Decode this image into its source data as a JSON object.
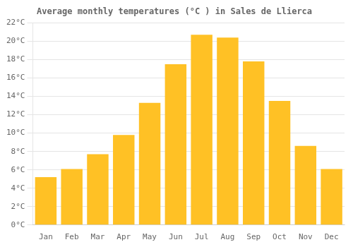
{
  "chart_data": {
    "type": "bar",
    "title": "Average monthly temperatures (°C ) in Sales de Llierca",
    "categories": [
      "Jan",
      "Feb",
      "Mar",
      "Apr",
      "May",
      "Jun",
      "Jul",
      "Aug",
      "Sep",
      "Oct",
      "Nov",
      "Dec"
    ],
    "values": [
      5.2,
      6.1,
      7.7,
      9.8,
      13.3,
      17.5,
      20.7,
      20.4,
      17.8,
      13.5,
      8.6,
      6.1
    ],
    "color": "#FFC125",
    "ylim": [
      0,
      22
    ],
    "yticks": [
      {
        "value": 0,
        "label": "0°C"
      },
      {
        "value": 2,
        "label": "2°C"
      },
      {
        "value": 4,
        "label": "4°C"
      },
      {
        "value": 6,
        "label": "6°C"
      },
      {
        "value": 8,
        "label": "8°C"
      },
      {
        "value": 10,
        "label": "10°C"
      },
      {
        "value": 12,
        "label": "12°C"
      },
      {
        "value": 14,
        "label": "14°C"
      },
      {
        "value": 16,
        "label": "16°C"
      },
      {
        "value": 18,
        "label": "18°C"
      },
      {
        "value": 20,
        "label": "20°C"
      },
      {
        "value": 22,
        "label": "22°C"
      }
    ],
    "grid": true
  }
}
